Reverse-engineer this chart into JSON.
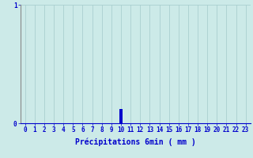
{
  "title": "",
  "xlabel": "Précipitations 6min ( mm )",
  "ylabel": "",
  "background_color": "#cceae8",
  "plot_bg_color": "#cceae8",
  "bar_data": [
    0,
    0,
    0,
    0,
    0,
    0,
    0,
    0,
    0,
    0,
    0.12,
    0,
    0,
    0,
    0,
    0,
    0,
    0,
    0,
    0,
    0,
    0,
    0,
    0
  ],
  "x_values": [
    0,
    1,
    2,
    3,
    4,
    5,
    6,
    7,
    8,
    9,
    10,
    11,
    12,
    13,
    14,
    15,
    16,
    17,
    18,
    19,
    20,
    21,
    22,
    23
  ],
  "x_tick_labels": [
    "0",
    "1",
    "2",
    "3",
    "4",
    "5",
    "6",
    "7",
    "8",
    "9",
    "10",
    "11",
    "12",
    "13",
    "14",
    "15",
    "16",
    "17",
    "18",
    "19",
    "20",
    "21",
    "22",
    "23"
  ],
  "ylim": [
    0,
    1
  ],
  "yticks": [
    0,
    1
  ],
  "bar_color": "#0000cc",
  "axis_color": "#0000cc",
  "text_color": "#0000cc",
  "grid_color": "#aacfcf",
  "tick_fontsize": 5.5,
  "xlabel_fontsize": 7,
  "bar_width": 0.3
}
